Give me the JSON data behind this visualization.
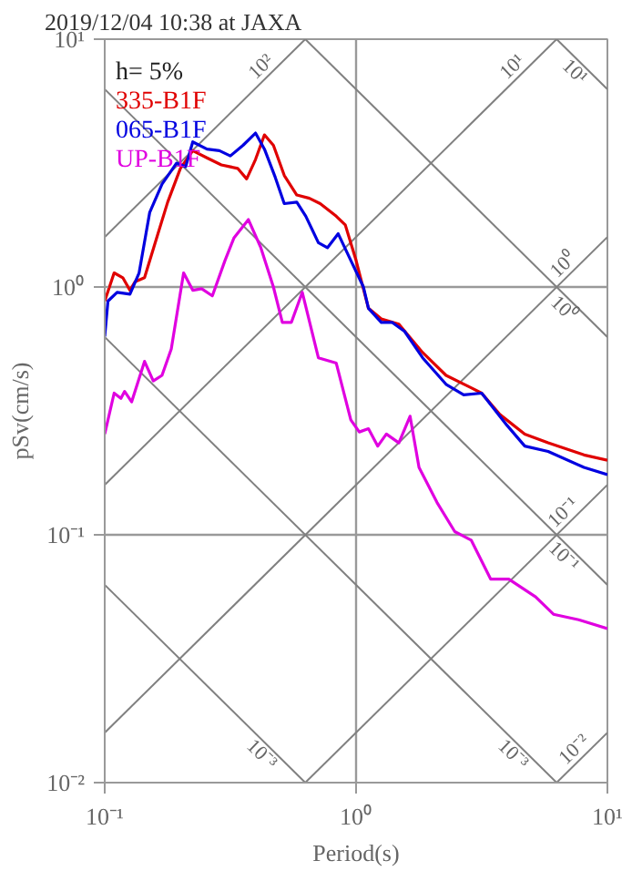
{
  "chart_data": {
    "type": "line",
    "title": "2019/12/04 10:38 at JAXA",
    "xlabel": "Period(s)",
    "ylabel": "pSv(cm/s)",
    "annotations": [
      "h= 5%"
    ],
    "log": "xy",
    "grid": true,
    "legend": "top left",
    "marker": "none",
    "line_style": "solid",
    "xlim": [
      0.1,
      10
    ],
    "ylim": [
      0.01,
      10
    ],
    "xticks": [
      {
        "value": 0.1,
        "label": "10⁻¹"
      },
      {
        "value": 1,
        "label": "10⁰"
      },
      {
        "value": 10,
        "label": "10¹"
      }
    ],
    "yticks": [
      {
        "value": 0.01,
        "label": "10⁻²"
      },
      {
        "value": 0.1,
        "label": "10⁻¹"
      },
      {
        "value": 1,
        "label": "10⁰"
      },
      {
        "value": 10,
        "label": "10¹"
      }
    ],
    "series": [
      {
        "name": "10²",
        "color": "#808080",
        "x": [
          0.1,
          0.628
        ],
        "values": [
          1.59,
          10
        ]
      },
      {
        "name": "10¹",
        "color": "#808080",
        "x": [
          0.1,
          6.28
        ],
        "values": [
          0.159,
          10
        ]
      },
      {
        "name": "10⁰",
        "color": "#808080",
        "x": [
          0.1,
          10
        ],
        "values": [
          0.0159,
          1.59
        ]
      },
      {
        "name": "10⁻¹",
        "color": "#808080",
        "x": [
          0.628,
          10
        ],
        "values": [
          0.01,
          0.159
        ]
      },
      {
        "name": "10⁻²",
        "color": "#808080",
        "x": [
          6.28,
          10
        ],
        "values": [
          0.01,
          0.0159
        ]
      },
      {
        "name": "10¹",
        "color": "#808080",
        "x": [
          6.28,
          10
        ],
        "values": [
          10,
          6.28
        ]
      },
      {
        "name": "10⁰",
        "color": "#808080",
        "x": [
          0.628,
          10
        ],
        "values": [
          10,
          0.628
        ]
      },
      {
        "name": "10⁻¹",
        "color": "#808080",
        "x": [
          0.1,
          10
        ],
        "values": [
          6.28,
          0.0628
        ]
      },
      {
        "name": "10⁻³",
        "color": "#808080",
        "x": [
          0.1,
          6.28
        ],
        "values": [
          0.628,
          0.01
        ]
      },
      {
        "name": "10⁻³",
        "color": "#808080",
        "x": [
          0.1,
          0.628
        ],
        "values": [
          0.0628,
          0.01
        ]
      },
      {
        "name": "335-B1F",
        "color": "#e00000",
        "x": [
          0.1,
          0.109,
          0.118,
          0.126,
          0.132,
          0.144,
          0.161,
          0.178,
          0.2,
          0.224,
          0.255,
          0.291,
          0.338,
          0.367,
          0.398,
          0.432,
          0.469,
          0.518,
          0.581,
          0.652,
          0.72,
          0.834,
          0.906,
          1.0,
          1.12,
          1.26,
          1.48,
          1.84,
          2.28,
          2.87,
          3.16,
          3.73,
          4.69,
          5.81,
          8.07,
          10
        ],
        "values": [
          0.877,
          1.14,
          1.09,
          0.97,
          1.05,
          1.09,
          1.58,
          2.2,
          3.01,
          3.55,
          3.32,
          3.11,
          3.01,
          2.73,
          3.27,
          4.11,
          3.73,
          2.82,
          2.35,
          2.28,
          2.17,
          1.93,
          1.78,
          1.28,
          0.821,
          0.743,
          0.708,
          0.544,
          0.44,
          0.392,
          0.373,
          0.306,
          0.255,
          0.235,
          0.21,
          0.2
        ]
      },
      {
        "name": "065-B1F",
        "color": "#0000e0",
        "x": [
          0.1,
          0.103,
          0.112,
          0.126,
          0.137,
          0.151,
          0.169,
          0.193,
          0.21,
          0.224,
          0.255,
          0.286,
          0.316,
          0.355,
          0.398,
          0.432,
          0.477,
          0.518,
          0.581,
          0.631,
          0.708,
          0.769,
          0.849,
          0.953,
          1.07,
          1.12,
          1.26,
          1.39,
          1.56,
          1.84,
          2.28,
          2.68,
          3.16,
          3.98,
          4.69,
          5.81,
          8.07,
          10
        ],
        "values": [
          0.631,
          0.877,
          0.952,
          0.936,
          1.14,
          2.0,
          2.6,
          3.16,
          3.06,
          3.85,
          3.6,
          3.55,
          3.38,
          3.73,
          4.18,
          3.6,
          2.77,
          2.17,
          2.2,
          1.93,
          1.51,
          1.44,
          1.64,
          1.28,
          1.0,
          0.821,
          0.72,
          0.72,
          0.662,
          0.518,
          0.405,
          0.367,
          0.373,
          0.277,
          0.228,
          0.217,
          0.187,
          0.175
        ]
      },
      {
        "name": "UP-B1F",
        "color": "#e000e0",
        "x": [
          0.1,
          0.109,
          0.116,
          0.12,
          0.128,
          0.144,
          0.156,
          0.169,
          0.184,
          0.206,
          0.224,
          0.243,
          0.268,
          0.301,
          0.327,
          0.373,
          0.418,
          0.469,
          0.509,
          0.553,
          0.611,
          0.708,
          0.834,
          0.953,
          1.03,
          1.12,
          1.22,
          1.32,
          1.48,
          1.64,
          1.78,
          2.1,
          2.47,
          2.87,
          3.43,
          4.05,
          5.18,
          6.1,
          7.69,
          10
        ],
        "values": [
          0.255,
          0.373,
          0.355,
          0.379,
          0.344,
          0.501,
          0.418,
          0.44,
          0.562,
          1.14,
          0.97,
          0.984,
          0.921,
          1.28,
          1.58,
          1.87,
          1.44,
          1.0,
          0.72,
          0.72,
          0.952,
          0.518,
          0.493,
          0.291,
          0.26,
          0.268,
          0.228,
          0.255,
          0.235,
          0.301,
          0.187,
          0.135,
          0.103,
          0.0952,
          0.0663,
          0.0663,
          0.0562,
          0.0478,
          0.0454,
          0.0418
        ]
      }
    ]
  }
}
